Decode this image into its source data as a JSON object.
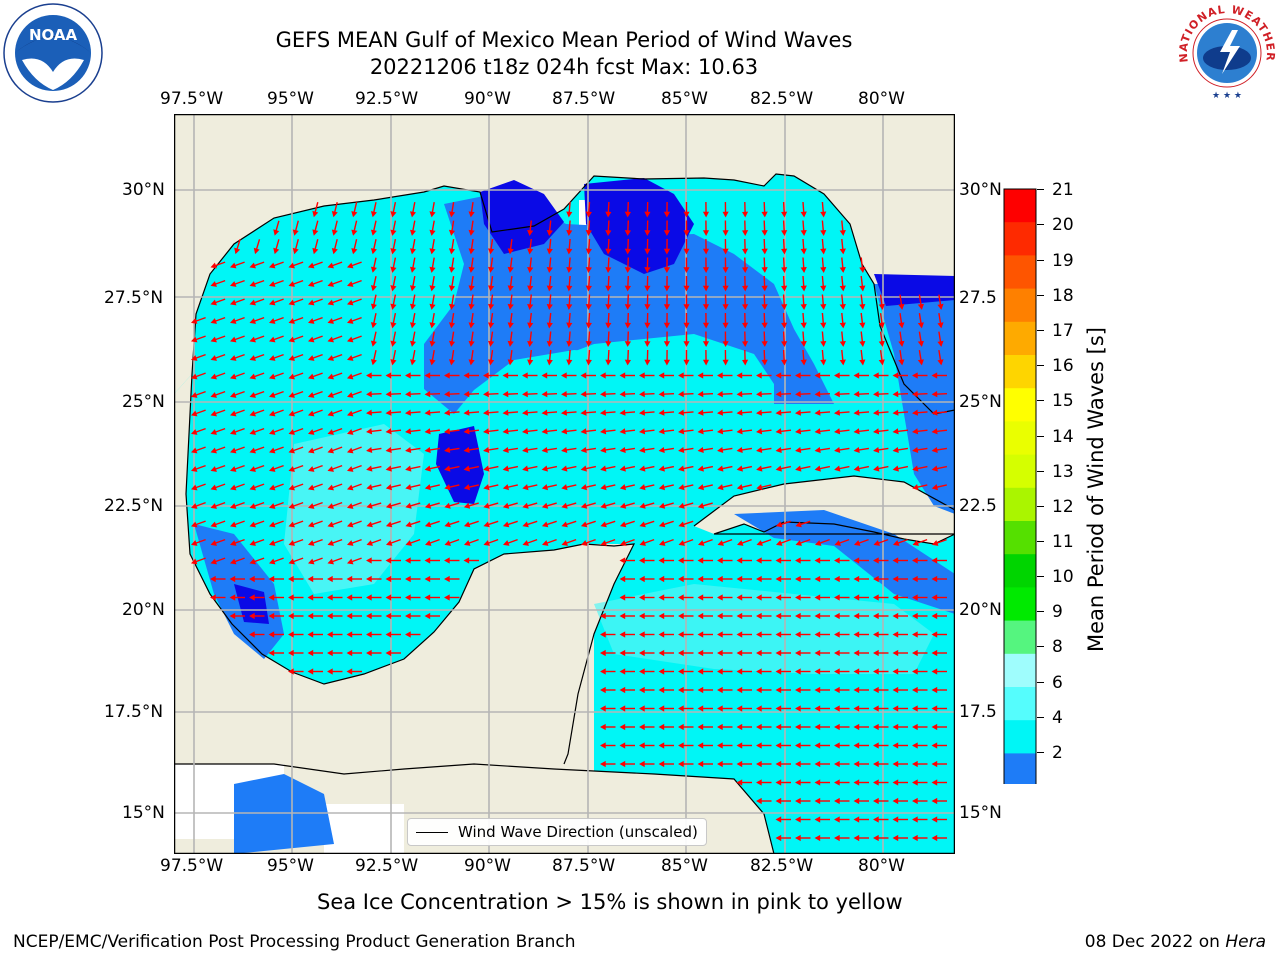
{
  "title": {
    "line1": "GEFS MEAN Gulf of Mexico Mean Period of Wind Waves",
    "line2": "20221206 t18z 024h fcst   Max: 10.63"
  },
  "map": {
    "lon_labels": [
      "97.5°W",
      "95°W",
      "92.5°W",
      "90°W",
      "87.5°W",
      "85°W",
      "82.5°W",
      "80°W"
    ],
    "lat_labels_left": [
      "30°N",
      "27.5°N",
      "25°N",
      "22.5°N",
      "20°N",
      "17.5°N",
      "15°N"
    ],
    "lat_labels_right": [
      "30°N",
      "27.5",
      "25°N",
      "22.5",
      "20°N",
      "17.5",
      "15°N"
    ],
    "colors": {
      "land": "#efeddd",
      "water_low": "#1e7cf7",
      "water_mid": "#00f6f6",
      "water_light": "#55f5f5",
      "deep_blue": "#0a0ae6",
      "arrow": "#ff0000"
    }
  },
  "legend": {
    "label": "Wind Wave Direction (unscaled)"
  },
  "colorbar": {
    "label": "Mean Period of Wind Waves [s]",
    "ticks": [
      "21",
      "20",
      "19",
      "18",
      "17",
      "16",
      "15",
      "14",
      "13",
      "12",
      "11",
      "10",
      "9",
      "8",
      "6",
      "4",
      "2"
    ],
    "colors": [
      "#fe0000",
      "#fe2a00",
      "#fe5500",
      "#fe8000",
      "#feaa00",
      "#fed500",
      "#ffff00",
      "#eaff00",
      "#d5ff00",
      "#aaf500",
      "#55e000",
      "#00d500",
      "#00ea00",
      "#55f57f",
      "#9ffdfd",
      "#55fdfd",
      "#00f6f6",
      "#1e7cf7"
    ],
    "extend_color": "#0000dd"
  },
  "caption": "Sea Ice Concentration > 15% is shown in pink to yellow",
  "footer": {
    "left": "NCEP/EMC/Verification Post Processing Product Generation Branch",
    "right_date": "08 Dec 2022 on ",
    "right_host": "Hera"
  },
  "logos": {
    "noaa_text": "NOAA",
    "nws_text": "NATIONAL WEATHER SERVICE"
  }
}
